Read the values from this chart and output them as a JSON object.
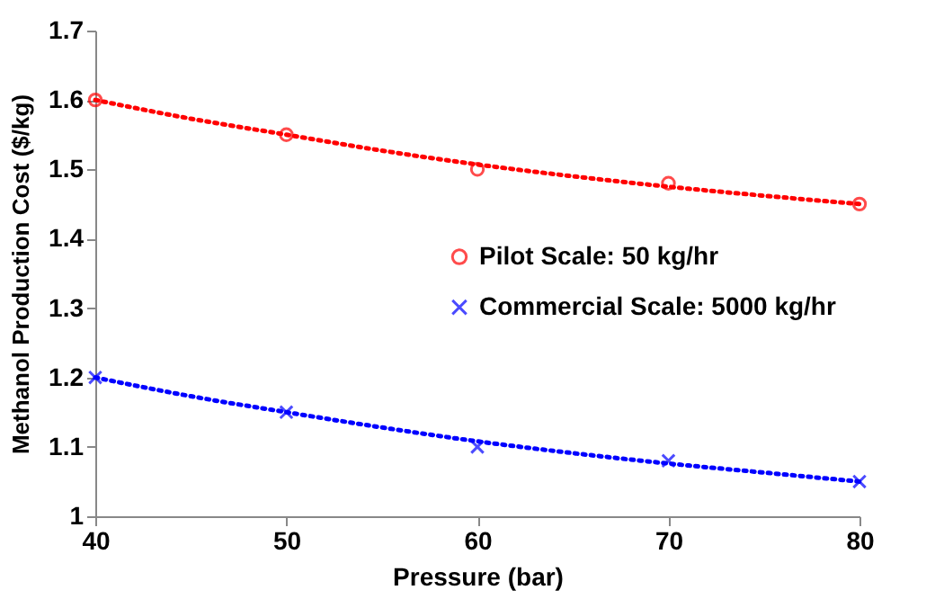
{
  "chart_data": {
    "type": "scatter",
    "xlabel": "Pressure (bar)",
    "ylabel": "Methanol Production Cost ($/kg)",
    "x": [
      40,
      50,
      60,
      70,
      80
    ],
    "series": [
      {
        "name": "Pilot Scale: 50 kg/hr",
        "color": "#ff0000",
        "marker": "circle",
        "values": [
          1.6,
          1.55,
          1.5,
          1.48,
          1.45
        ]
      },
      {
        "name": "Commercial Scale: 5000 kg/hr",
        "color": "#0000ff",
        "marker": "cross",
        "values": [
          1.2,
          1.15,
          1.1,
          1.08,
          1.05
        ]
      },
      {
        "type": "line",
        "color": "#ff0000",
        "line_style": "dotted",
        "x": [
          40,
          45,
          50,
          55,
          60,
          65,
          70,
          75,
          80
        ],
        "values": [
          1.6,
          1.573,
          1.55,
          1.527,
          1.507,
          1.49,
          1.475,
          1.462,
          1.45
        ]
      },
      {
        "type": "line",
        "color": "#0000ff",
        "line_style": "dotted",
        "x": [
          40,
          45,
          50,
          55,
          60,
          65,
          70,
          75,
          80
        ],
        "values": [
          1.2,
          1.173,
          1.15,
          1.128,
          1.108,
          1.091,
          1.076,
          1.063,
          1.05
        ]
      }
    ],
    "xlim": [
      40,
      80
    ],
    "xticks": [
      40,
      50,
      60,
      70,
      80
    ],
    "ylim": [
      1,
      1.7
    ],
    "yticks": [
      1,
      1.1,
      1.2,
      1.3,
      1.4,
      1.5,
      1.6,
      1.7
    ],
    "grid": false,
    "legend": "right"
  }
}
